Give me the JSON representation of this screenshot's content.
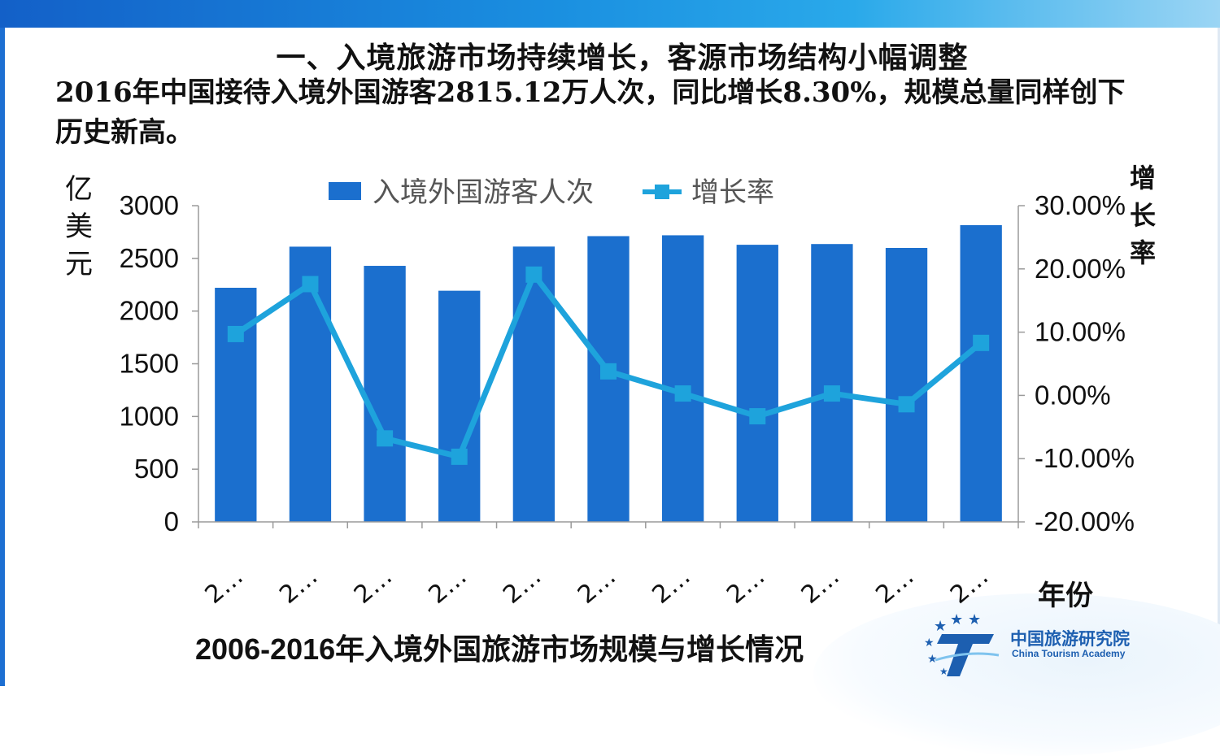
{
  "slide": {
    "heading": "一、入境旅游市场持续增长，客源市场结构小幅调整",
    "summary": "2016年中国接待入境外国游客2815.12万人次，同比增长8.30%，规模总量同样创下历史新高。",
    "caption": "2006-2016年入境外国旅游市场规模与增长情况",
    "accent_color": "#1b6fce",
    "line_color": "#1ea3dc"
  },
  "logo": {
    "name_cn": "中国旅游研究院",
    "name_en": "China Tourism Academy"
  },
  "chart_data": {
    "type": "bar",
    "left_axis_title": "亿美元",
    "right_axis_title": "增长率",
    "x_axis_title": "年份",
    "categories": [
      "2…",
      "2…",
      "2…",
      "2…",
      "2…",
      "2…",
      "2…",
      "2…",
      "2…",
      "2…",
      "2…"
    ],
    "series": [
      {
        "name": "入境外国游客人次",
        "type": "bar",
        "axis": "left",
        "values": [
          2221,
          2611,
          2429,
          2193,
          2612,
          2711,
          2719,
          2629,
          2636,
          2599,
          2815
        ]
      },
      {
        "name": "增长率",
        "type": "line",
        "axis": "right",
        "values": [
          9.7,
          17.6,
          -6.8,
          -9.7,
          19.1,
          3.8,
          0.3,
          -3.3,
          0.3,
          -1.4,
          8.3
        ]
      }
    ],
    "left_ylim": [
      0,
      3000
    ],
    "left_ticks": [
      "0",
      "500",
      "1000",
      "1500",
      "2000",
      "2500",
      "3000"
    ],
    "right_ylim": [
      -20,
      30
    ],
    "right_ticks": [
      "-20.00%",
      "-10.00%",
      "0.00%",
      "10.00%",
      "20.00%",
      "30.00%"
    ],
    "legend_position": "top",
    "grid": false
  }
}
